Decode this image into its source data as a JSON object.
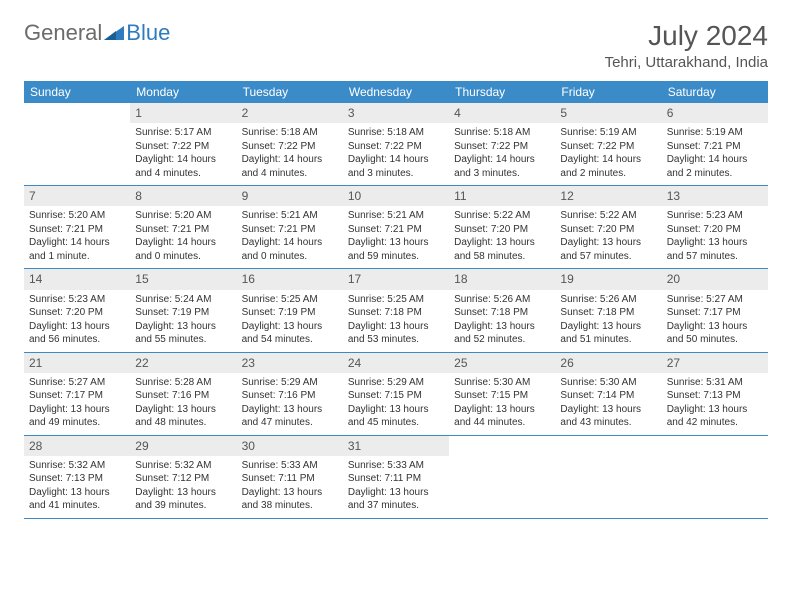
{
  "logo": {
    "general": "General",
    "blue": "Blue"
  },
  "title": "July 2024",
  "location": "Tehri, Uttarakhand, India",
  "colors": {
    "header_bg": "#3b8bc9",
    "header_text": "#ffffff",
    "daynum_bg": "#ececec",
    "border": "#3b8bc9",
    "logo_gray": "#6b6b6b",
    "logo_blue": "#2f7bbf"
  },
  "weekdays": [
    "Sunday",
    "Monday",
    "Tuesday",
    "Wednesday",
    "Thursday",
    "Friday",
    "Saturday"
  ],
  "weeks": [
    [
      {
        "n": "",
        "sr": "",
        "ss": "",
        "dl": ""
      },
      {
        "n": "1",
        "sr": "Sunrise: 5:17 AM",
        "ss": "Sunset: 7:22 PM",
        "dl": "Daylight: 14 hours and 4 minutes."
      },
      {
        "n": "2",
        "sr": "Sunrise: 5:18 AM",
        "ss": "Sunset: 7:22 PM",
        "dl": "Daylight: 14 hours and 4 minutes."
      },
      {
        "n": "3",
        "sr": "Sunrise: 5:18 AM",
        "ss": "Sunset: 7:22 PM",
        "dl": "Daylight: 14 hours and 3 minutes."
      },
      {
        "n": "4",
        "sr": "Sunrise: 5:18 AM",
        "ss": "Sunset: 7:22 PM",
        "dl": "Daylight: 14 hours and 3 minutes."
      },
      {
        "n": "5",
        "sr": "Sunrise: 5:19 AM",
        "ss": "Sunset: 7:22 PM",
        "dl": "Daylight: 14 hours and 2 minutes."
      },
      {
        "n": "6",
        "sr": "Sunrise: 5:19 AM",
        "ss": "Sunset: 7:21 PM",
        "dl": "Daylight: 14 hours and 2 minutes."
      }
    ],
    [
      {
        "n": "7",
        "sr": "Sunrise: 5:20 AM",
        "ss": "Sunset: 7:21 PM",
        "dl": "Daylight: 14 hours and 1 minute."
      },
      {
        "n": "8",
        "sr": "Sunrise: 5:20 AM",
        "ss": "Sunset: 7:21 PM",
        "dl": "Daylight: 14 hours and 0 minutes."
      },
      {
        "n": "9",
        "sr": "Sunrise: 5:21 AM",
        "ss": "Sunset: 7:21 PM",
        "dl": "Daylight: 14 hours and 0 minutes."
      },
      {
        "n": "10",
        "sr": "Sunrise: 5:21 AM",
        "ss": "Sunset: 7:21 PM",
        "dl": "Daylight: 13 hours and 59 minutes."
      },
      {
        "n": "11",
        "sr": "Sunrise: 5:22 AM",
        "ss": "Sunset: 7:20 PM",
        "dl": "Daylight: 13 hours and 58 minutes."
      },
      {
        "n": "12",
        "sr": "Sunrise: 5:22 AM",
        "ss": "Sunset: 7:20 PM",
        "dl": "Daylight: 13 hours and 57 minutes."
      },
      {
        "n": "13",
        "sr": "Sunrise: 5:23 AM",
        "ss": "Sunset: 7:20 PM",
        "dl": "Daylight: 13 hours and 57 minutes."
      }
    ],
    [
      {
        "n": "14",
        "sr": "Sunrise: 5:23 AM",
        "ss": "Sunset: 7:20 PM",
        "dl": "Daylight: 13 hours and 56 minutes."
      },
      {
        "n": "15",
        "sr": "Sunrise: 5:24 AM",
        "ss": "Sunset: 7:19 PM",
        "dl": "Daylight: 13 hours and 55 minutes."
      },
      {
        "n": "16",
        "sr": "Sunrise: 5:25 AM",
        "ss": "Sunset: 7:19 PM",
        "dl": "Daylight: 13 hours and 54 minutes."
      },
      {
        "n": "17",
        "sr": "Sunrise: 5:25 AM",
        "ss": "Sunset: 7:18 PM",
        "dl": "Daylight: 13 hours and 53 minutes."
      },
      {
        "n": "18",
        "sr": "Sunrise: 5:26 AM",
        "ss": "Sunset: 7:18 PM",
        "dl": "Daylight: 13 hours and 52 minutes."
      },
      {
        "n": "19",
        "sr": "Sunrise: 5:26 AM",
        "ss": "Sunset: 7:18 PM",
        "dl": "Daylight: 13 hours and 51 minutes."
      },
      {
        "n": "20",
        "sr": "Sunrise: 5:27 AM",
        "ss": "Sunset: 7:17 PM",
        "dl": "Daylight: 13 hours and 50 minutes."
      }
    ],
    [
      {
        "n": "21",
        "sr": "Sunrise: 5:27 AM",
        "ss": "Sunset: 7:17 PM",
        "dl": "Daylight: 13 hours and 49 minutes."
      },
      {
        "n": "22",
        "sr": "Sunrise: 5:28 AM",
        "ss": "Sunset: 7:16 PM",
        "dl": "Daylight: 13 hours and 48 minutes."
      },
      {
        "n": "23",
        "sr": "Sunrise: 5:29 AM",
        "ss": "Sunset: 7:16 PM",
        "dl": "Daylight: 13 hours and 47 minutes."
      },
      {
        "n": "24",
        "sr": "Sunrise: 5:29 AM",
        "ss": "Sunset: 7:15 PM",
        "dl": "Daylight: 13 hours and 45 minutes."
      },
      {
        "n": "25",
        "sr": "Sunrise: 5:30 AM",
        "ss": "Sunset: 7:15 PM",
        "dl": "Daylight: 13 hours and 44 minutes."
      },
      {
        "n": "26",
        "sr": "Sunrise: 5:30 AM",
        "ss": "Sunset: 7:14 PM",
        "dl": "Daylight: 13 hours and 43 minutes."
      },
      {
        "n": "27",
        "sr": "Sunrise: 5:31 AM",
        "ss": "Sunset: 7:13 PM",
        "dl": "Daylight: 13 hours and 42 minutes."
      }
    ],
    [
      {
        "n": "28",
        "sr": "Sunrise: 5:32 AM",
        "ss": "Sunset: 7:13 PM",
        "dl": "Daylight: 13 hours and 41 minutes."
      },
      {
        "n": "29",
        "sr": "Sunrise: 5:32 AM",
        "ss": "Sunset: 7:12 PM",
        "dl": "Daylight: 13 hours and 39 minutes."
      },
      {
        "n": "30",
        "sr": "Sunrise: 5:33 AM",
        "ss": "Sunset: 7:11 PM",
        "dl": "Daylight: 13 hours and 38 minutes."
      },
      {
        "n": "31",
        "sr": "Sunrise: 5:33 AM",
        "ss": "Sunset: 7:11 PM",
        "dl": "Daylight: 13 hours and 37 minutes."
      },
      {
        "n": "",
        "sr": "",
        "ss": "",
        "dl": ""
      },
      {
        "n": "",
        "sr": "",
        "ss": "",
        "dl": ""
      },
      {
        "n": "",
        "sr": "",
        "ss": "",
        "dl": ""
      }
    ]
  ]
}
